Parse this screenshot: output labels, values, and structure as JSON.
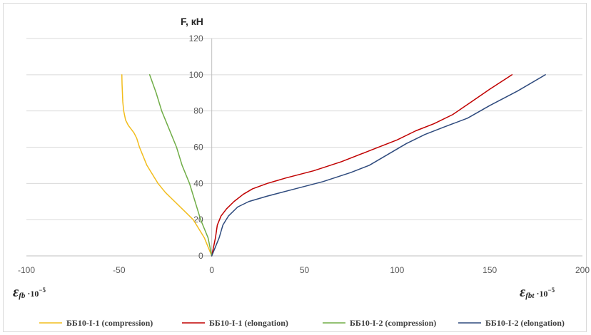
{
  "chart_data": {
    "type": "line",
    "title": "",
    "ylabel": "F, кН",
    "xlabel_left": {
      "symbol": "ε",
      "sub": "fb",
      "mult": "·10",
      "exp": "−5"
    },
    "xlabel_right": {
      "symbol": "ε",
      "sub": "fbt",
      "mult": "·10",
      "exp": "−5"
    },
    "xlim": [
      -100,
      200
    ],
    "ylim": [
      0,
      120
    ],
    "x_ticks": [
      "-100",
      "-50",
      "0",
      "50",
      "100",
      "150",
      "200"
    ],
    "y_ticks": [
      "0",
      "20",
      "40",
      "60",
      "80",
      "100",
      "120"
    ],
    "grid": "horizontal",
    "legend_position": "bottom",
    "series": [
      {
        "name": "ББ10-I-1 (compression)",
        "color": "#f2bd1d",
        "points": [
          [
            0,
            0
          ],
          [
            -2,
            5
          ],
          [
            -4,
            10
          ],
          [
            -7,
            15
          ],
          [
            -10,
            20
          ],
          [
            -15,
            25
          ],
          [
            -20,
            30
          ],
          [
            -25,
            35
          ],
          [
            -29,
            40
          ],
          [
            -32,
            45
          ],
          [
            -35,
            50
          ],
          [
            -37,
            55
          ],
          [
            -39,
            60
          ],
          [
            -40.5,
            65
          ],
          [
            -42,
            68
          ],
          [
            -43.5,
            70
          ],
          [
            -45,
            72
          ],
          [
            -46.5,
            75
          ],
          [
            -47.5,
            80
          ],
          [
            -48,
            85
          ],
          [
            -48.2,
            90
          ],
          [
            -48.4,
            95
          ],
          [
            -48.5,
            100
          ]
        ]
      },
      {
        "name": "ББ10-I-1 (elongation)",
        "color": "#c00000",
        "points": [
          [
            0,
            0
          ],
          [
            1,
            5
          ],
          [
            2,
            10
          ],
          [
            3,
            17
          ],
          [
            5,
            22
          ],
          [
            8,
            26
          ],
          [
            12,
            30
          ],
          [
            17,
            34
          ],
          [
            22,
            37
          ],
          [
            30,
            40
          ],
          [
            40,
            43
          ],
          [
            55,
            47
          ],
          [
            70,
            52
          ],
          [
            85,
            58
          ],
          [
            100,
            64
          ],
          [
            110,
            69
          ],
          [
            120,
            73
          ],
          [
            130,
            78
          ],
          [
            140,
            85
          ],
          [
            150,
            92
          ],
          [
            162,
            100
          ]
        ]
      },
      {
        "name": "ББ10-I-2 (compression)",
        "color": "#70ad47",
        "points": [
          [
            0,
            0
          ],
          [
            -1,
            5
          ],
          [
            -2,
            10
          ],
          [
            -4,
            15
          ],
          [
            -6,
            20
          ],
          [
            -9,
            30
          ],
          [
            -12,
            40
          ],
          [
            -16,
            50
          ],
          [
            -19,
            60
          ],
          [
            -23,
            70
          ],
          [
            -27,
            80
          ],
          [
            -30,
            90
          ],
          [
            -33.5,
            100
          ]
        ]
      },
      {
        "name": "ББ10-I-2 (elongation)",
        "color": "#2e4a7d",
        "points": [
          [
            0,
            0
          ],
          [
            2,
            5
          ],
          [
            4,
            10
          ],
          [
            6,
            17
          ],
          [
            9,
            22
          ],
          [
            14,
            27
          ],
          [
            20,
            30
          ],
          [
            30,
            33
          ],
          [
            45,
            37
          ],
          [
            60,
            41
          ],
          [
            75,
            46
          ],
          [
            85,
            50
          ],
          [
            95,
            56
          ],
          [
            105,
            62
          ],
          [
            115,
            67
          ],
          [
            125,
            71
          ],
          [
            138,
            76
          ],
          [
            150,
            83
          ],
          [
            165,
            91
          ],
          [
            180,
            100
          ]
        ]
      }
    ]
  }
}
